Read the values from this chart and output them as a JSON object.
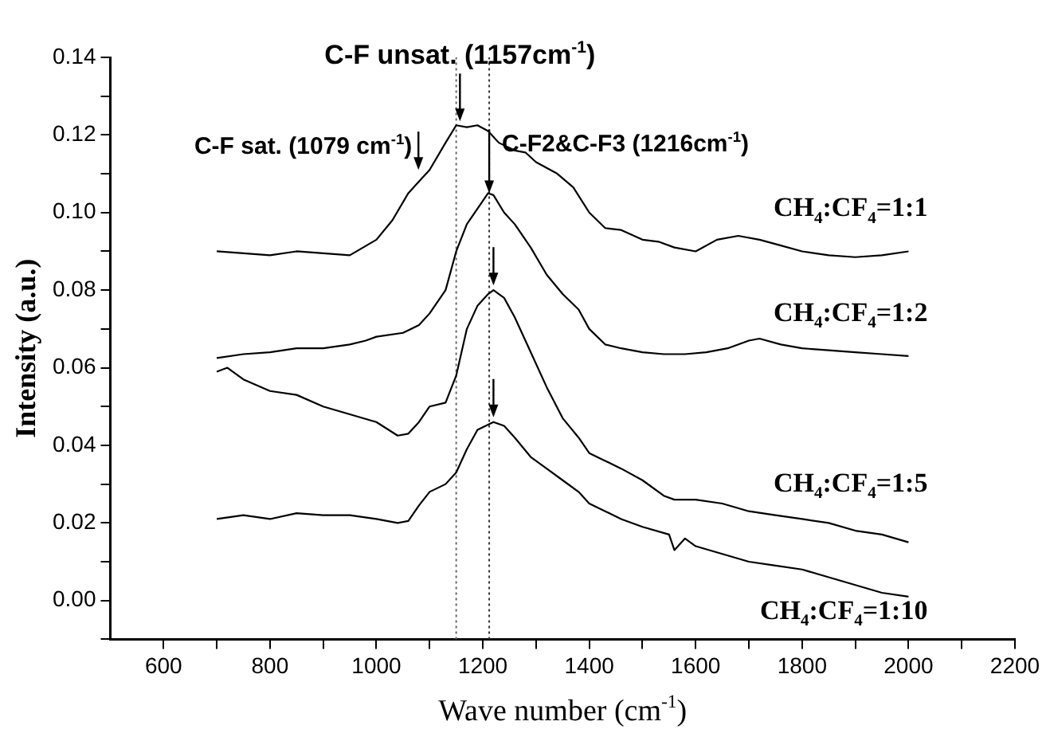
{
  "chart_data": {
    "type": "line",
    "xlabel": "Wave number (cm$^{-1}$)",
    "ylabel": "Intensity (a.u.)",
    "xlim": [
      500,
      2200
    ],
    "ylim": [
      -0.01,
      0.14
    ],
    "xticks": [
      600,
      {
        "value": 700,
        "label": null
      },
      800,
      {
        "value": 900,
        "label": null
      },
      1000,
      {
        "value": 1100,
        "label": null
      },
      1200,
      {
        "value": 1300,
        "label": null
      },
      1400,
      {
        "value": 1500,
        "label": null
      },
      1600,
      {
        "value": 1700,
        "label": null
      },
      1800,
      {
        "value": 1900,
        "label": null
      },
      2000,
      {
        "value": 2100,
        "label": null
      },
      2200
    ],
    "yticks": [
      {
        "value": -0.01,
        "label": null
      },
      "0.00",
      {
        "value": 0.01,
        "label": null
      },
      {
        "value": 0.02,
        "label": "0.02"
      },
      {
        "value": 0.03,
        "label": null
      },
      {
        "value": 0.04,
        "label": "0.04"
      },
      {
        "value": 0.05,
        "label": null
      },
      {
        "value": 0.06,
        "label": "0.06"
      },
      {
        "value": 0.07,
        "label": null
      },
      {
        "value": 0.08,
        "label": "0.08"
      },
      {
        "value": 0.09,
        "label": null
      },
      {
        "value": 0.1,
        "label": "0.10"
      },
      {
        "value": 0.11,
        "label": null
      },
      {
        "value": 0.12,
        "label": "0.12"
      },
      {
        "value": 0.13,
        "label": null
      },
      {
        "value": 0.14,
        "label": "0.14"
      }
    ],
    "grid": false,
    "marker": "none",
    "line_style": "solid",
    "ref_lines": [
      {
        "axis": "x",
        "value": 1150,
        "line_style": "dotted",
        "color": "#666666"
      },
      {
        "axis": "x",
        "value": 1212,
        "line_style": "dotted",
        "color": "#333333"
      }
    ],
    "annotations": [
      {
        "text": "C-F sat. (1079 cm$^{-1}$)",
        "x": 1079,
        "y": 0.111
      },
      {
        "text": "C-F unsat. (1157cm$^{-1}$)",
        "x": 1157,
        "y": 0.1235
      },
      {
        "text": "C-F2&C-F3 (1216cm$^{-1}$)",
        "x": 1212,
        "y": 0.105
      }
    ],
    "series": [
      {
        "name": "CH$_{4}$:CF$_{4}$=1:1",
        "color": "#000000",
        "x": [
          700,
          750,
          800,
          850,
          900,
          950,
          1000,
          1030,
          1060,
          1080,
          1100,
          1130,
          1150,
          1170,
          1190,
          1210,
          1230,
          1260,
          1280,
          1300,
          1340,
          1370,
          1400,
          1430,
          1460,
          1500,
          1530,
          1560,
          1600,
          1640,
          1680,
          1720,
          1760,
          1800,
          1850,
          1900,
          1950,
          2000
        ],
        "values": [
          0.09,
          0.0895,
          0.089,
          0.09,
          0.0895,
          0.089,
          0.093,
          0.098,
          0.105,
          0.108,
          0.111,
          0.118,
          0.1225,
          0.122,
          0.1225,
          0.121,
          0.118,
          0.116,
          0.1155,
          0.113,
          0.11,
          0.1065,
          0.1,
          0.096,
          0.0955,
          0.093,
          0.0925,
          0.091,
          0.09,
          0.093,
          0.094,
          0.093,
          0.0915,
          0.09,
          0.089,
          0.0885,
          0.089,
          0.09
        ]
      },
      {
        "name": "CH$_{4}$:CF$_{4}$=1:2",
        "color": "#000000",
        "x": [
          700,
          750,
          800,
          850,
          900,
          950,
          980,
          1000,
          1050,
          1080,
          1100,
          1130,
          1150,
          1170,
          1190,
          1210,
          1220,
          1240,
          1260,
          1290,
          1320,
          1350,
          1380,
          1400,
          1430,
          1460,
          1500,
          1540,
          1580,
          1620,
          1660,
          1700,
          1720,
          1760,
          1800,
          1850,
          1900,
          1950,
          2000
        ],
        "values": [
          0.0625,
          0.0635,
          0.064,
          0.065,
          0.065,
          0.066,
          0.067,
          0.068,
          0.069,
          0.071,
          0.074,
          0.08,
          0.09,
          0.097,
          0.101,
          0.105,
          0.1045,
          0.1,
          0.097,
          0.091,
          0.084,
          0.079,
          0.075,
          0.07,
          0.066,
          0.065,
          0.064,
          0.0635,
          0.0635,
          0.064,
          0.065,
          0.067,
          0.0675,
          0.066,
          0.065,
          0.0645,
          0.064,
          0.0635,
          0.063
        ]
      },
      {
        "name": "CH$_{4}$:CF$_{4}$=1:5",
        "color": "#000000",
        "x": [
          700,
          720,
          750,
          800,
          850,
          900,
          950,
          1000,
          1040,
          1060,
          1080,
          1100,
          1130,
          1150,
          1170,
          1190,
          1210,
          1220,
          1240,
          1260,
          1290,
          1320,
          1350,
          1380,
          1400,
          1430,
          1460,
          1500,
          1540,
          1560,
          1600,
          1650,
          1700,
          1750,
          1800,
          1850,
          1900,
          1950,
          2000
        ],
        "values": [
          0.059,
          0.06,
          0.057,
          0.054,
          0.053,
          0.05,
          0.048,
          0.046,
          0.0425,
          0.043,
          0.046,
          0.05,
          0.051,
          0.058,
          0.07,
          0.076,
          0.079,
          0.08,
          0.078,
          0.073,
          0.064,
          0.055,
          0.047,
          0.042,
          0.038,
          0.036,
          0.034,
          0.031,
          0.027,
          0.026,
          0.026,
          0.025,
          0.023,
          0.022,
          0.021,
          0.02,
          0.018,
          0.017,
          0.015
        ]
      },
      {
        "name": "CH$_{4}$:CF$_{4}$=1:10",
        "color": "#000000",
        "x": [
          700,
          750,
          800,
          850,
          900,
          950,
          1000,
          1040,
          1060,
          1080,
          1100,
          1130,
          1150,
          1170,
          1190,
          1220,
          1240,
          1260,
          1290,
          1320,
          1350,
          1380,
          1400,
          1430,
          1460,
          1500,
          1550,
          1560,
          1580,
          1600,
          1650,
          1700,
          1750,
          1800,
          1850,
          1900,
          1950,
          2000
        ],
        "values": [
          0.021,
          0.022,
          0.021,
          0.0225,
          0.022,
          0.022,
          0.021,
          0.02,
          0.0205,
          0.0245,
          0.028,
          0.03,
          0.033,
          0.039,
          0.044,
          0.046,
          0.045,
          0.042,
          0.037,
          0.034,
          0.031,
          0.028,
          0.025,
          0.023,
          0.021,
          0.019,
          0.017,
          0.013,
          0.016,
          0.014,
          0.012,
          0.01,
          0.009,
          0.008,
          0.006,
          0.004,
          0.002,
          0.001
        ]
      }
    ]
  }
}
